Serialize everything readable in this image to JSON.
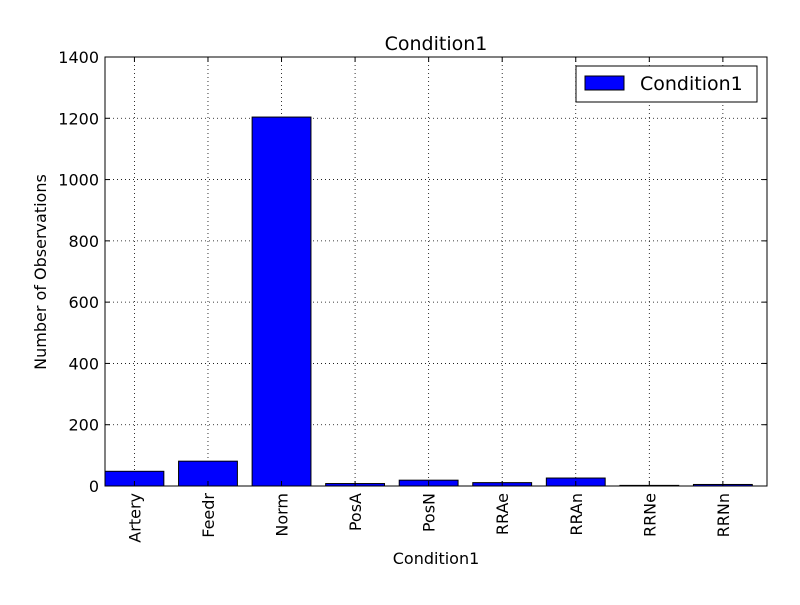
{
  "chart_data": {
    "type": "bar",
    "title": "Condition1",
    "xlabel": "Condition1",
    "ylabel": "Number of Observations",
    "categories": [
      "Artery",
      "Feedr",
      "Norm",
      "PosA",
      "PosN",
      "RRAe",
      "RRAn",
      "RRNe",
      "RRNn"
    ],
    "series": [
      {
        "name": "Condition1",
        "values": [
          48,
          81,
          1204,
          8,
          19,
          11,
          26,
          2,
          5
        ]
      }
    ],
    "ylim": [
      0,
      1400
    ],
    "yticks": [
      "0",
      "200",
      "400",
      "600",
      "800",
      "1000",
      "1200",
      "1400"
    ],
    "grid": true,
    "legend_position": "top-right",
    "colors": {
      "bar_fill": "#0000ff",
      "bar_edge": "#000000",
      "grid": "#000000"
    }
  }
}
